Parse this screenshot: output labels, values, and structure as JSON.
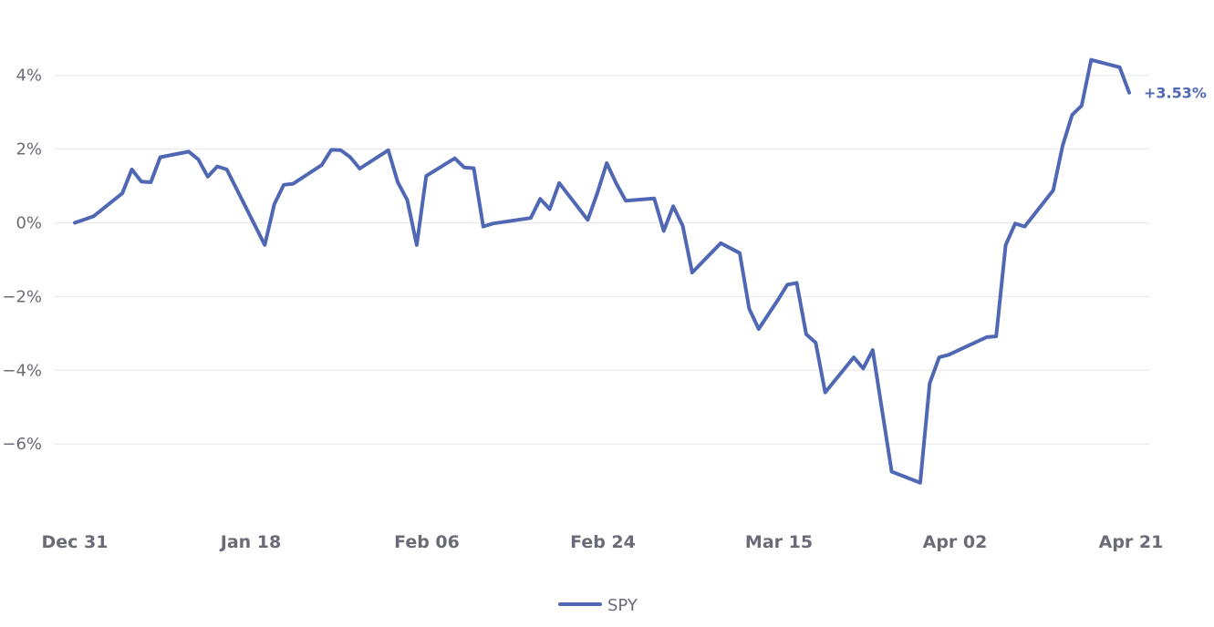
{
  "chart_data": {
    "type": "line",
    "y_unit": "%",
    "y_ticks": [
      -6,
      -4,
      -2,
      0,
      2,
      4
    ],
    "y_tick_labels": [
      "−6%",
      "−4%",
      "−2%",
      "0%",
      "2%",
      "4%"
    ],
    "ylim": [
      -7.8,
      5.6
    ],
    "x_ticks": [
      "Dec 31",
      "Jan 18",
      "Feb 06",
      "Feb 24",
      "Mar 15",
      "Apr 02",
      "Apr 21"
    ],
    "xlim": [
      0,
      111
    ],
    "grid": true,
    "legend_position": "bottom-center",
    "series_color": "#5068b4",
    "series": [
      {
        "name": "SPY",
        "end_label": "+3.53%",
        "points": [
          [
            0,
            0.0
          ],
          [
            2,
            0.18
          ],
          [
            5,
            0.8
          ],
          [
            6,
            1.45
          ],
          [
            7,
            1.12
          ],
          [
            8,
            1.1
          ],
          [
            9,
            1.78
          ],
          [
            12,
            1.93
          ],
          [
            13,
            1.72
          ],
          [
            14,
            1.25
          ],
          [
            15,
            1.53
          ],
          [
            16,
            1.45
          ],
          [
            20,
            -0.6
          ],
          [
            21,
            0.5
          ],
          [
            22,
            1.03
          ],
          [
            23,
            1.06
          ],
          [
            26,
            1.57
          ],
          [
            27,
            1.98
          ],
          [
            28,
            1.97
          ],
          [
            29,
            1.78
          ],
          [
            30,
            1.47
          ],
          [
            33,
            1.97
          ],
          [
            34,
            1.1
          ],
          [
            35,
            0.62
          ],
          [
            36,
            -0.6
          ],
          [
            37,
            1.27
          ],
          [
            40,
            1.75
          ],
          [
            41,
            1.5
          ],
          [
            42,
            1.48
          ],
          [
            43,
            -0.1
          ],
          [
            44,
            -0.02
          ],
          [
            48,
            0.13
          ],
          [
            49,
            0.65
          ],
          [
            50,
            0.37
          ],
          [
            51,
            1.08
          ],
          [
            54,
            0.08
          ],
          [
            55,
            0.8
          ],
          [
            56,
            1.62
          ],
          [
            57,
            1.07
          ],
          [
            58,
            0.6
          ],
          [
            61,
            0.66
          ],
          [
            62,
            -0.22
          ],
          [
            63,
            0.45
          ],
          [
            64,
            -0.08
          ],
          [
            65,
            -1.35
          ],
          [
            68,
            -0.55
          ],
          [
            70,
            -0.82
          ],
          [
            71,
            -2.33
          ],
          [
            72,
            -2.88
          ],
          [
            74,
            -2.1
          ],
          [
            75,
            -1.68
          ],
          [
            76,
            -1.63
          ],
          [
            77,
            -3.02
          ],
          [
            78,
            -3.25
          ],
          [
            79,
            -4.6
          ],
          [
            82,
            -3.65
          ],
          [
            83,
            -3.95
          ],
          [
            84,
            -3.45
          ],
          [
            85,
            -5.1
          ],
          [
            86,
            -6.75
          ],
          [
            89,
            -7.05
          ],
          [
            90,
            -4.35
          ],
          [
            91,
            -3.65
          ],
          [
            92,
            -3.58
          ],
          [
            96,
            -3.1
          ],
          [
            97,
            -3.08
          ],
          [
            98,
            -0.6
          ],
          [
            99,
            -0.02
          ],
          [
            100,
            -0.1
          ],
          [
            103,
            0.88
          ],
          [
            104,
            2.1
          ],
          [
            105,
            2.93
          ],
          [
            106,
            3.18
          ],
          [
            107,
            4.42
          ],
          [
            110,
            4.22
          ],
          [
            111,
            3.53
          ]
        ]
      }
    ]
  }
}
